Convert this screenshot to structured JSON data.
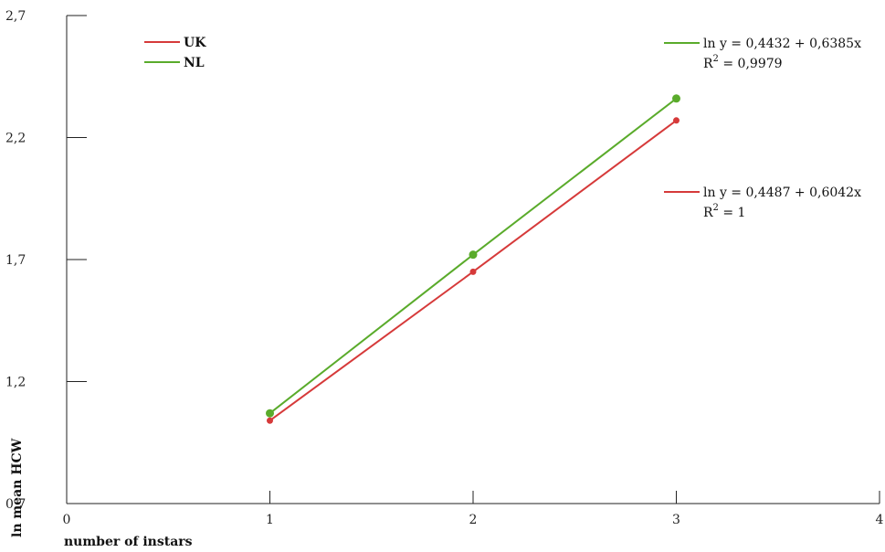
{
  "chart_data": {
    "type": "line",
    "title": "",
    "xlabel": "number of instars",
    "ylabel": "ln mean HCW",
    "xlim": [
      0,
      4
    ],
    "ylim": [
      0.7,
      2.7
    ],
    "x_ticks": [
      "0",
      "1",
      "2",
      "3",
      "4"
    ],
    "y_ticks": [
      "0,7",
      "1,2",
      "1,7",
      "2,2",
      "2,7"
    ],
    "x_tick_values": [
      0,
      1,
      2,
      3,
      4
    ],
    "y_tick_values": [
      0.7,
      1.2,
      1.7,
      2.2,
      2.7
    ],
    "grid": false,
    "legend_position": "top-left",
    "series": [
      {
        "name": "UK",
        "color": "#d63a3a",
        "x": [
          1,
          2,
          3
        ],
        "y": [
          1.04,
          1.65,
          2.27
        ],
        "trendline_eq_prefix": "ln y = 0,4487 + 0,6042x",
        "r2_label": "R",
        "r2_sup": "2",
        "r2_value": " = 1"
      },
      {
        "name": "NL",
        "color": "#5aab2b",
        "x": [
          1,
          2,
          3
        ],
        "y": [
          1.07,
          1.72,
          2.36
        ],
        "trendline_eq_prefix": "ln y = 0,4432 + 0,6385x",
        "r2_label": "R",
        "r2_sup": "2",
        "r2_value": " = 0,9979"
      }
    ]
  }
}
